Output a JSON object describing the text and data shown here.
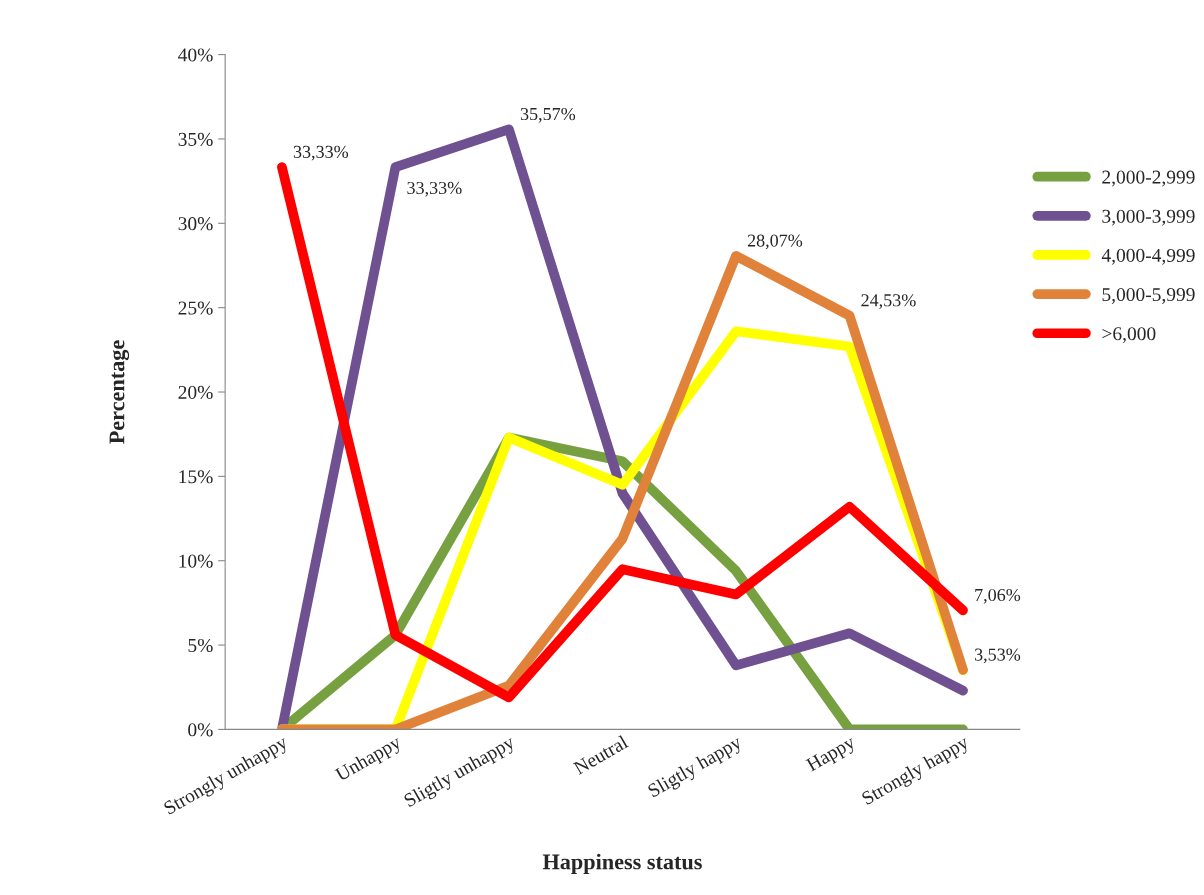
{
  "chart_data": {
    "type": "line",
    "xlabel": "Happiness status",
    "ylabel": "Percentage",
    "categories": [
      "Strongly unhappy",
      "Unhappy",
      "Sligtly unhappy",
      "Neutral",
      "Sligtly happy",
      "Happy",
      "Strongly happy"
    ],
    "series": [
      {
        "name": "2,000-2,999",
        "color": "#77a040",
        "values": [
          0,
          5.6,
          17.3,
          15.9,
          9.4,
          0,
          0
        ]
      },
      {
        "name": "3,000-3,999",
        "color": "#6f5090",
        "values": [
          0,
          33.33,
          35.57,
          14.0,
          3.8,
          5.7,
          2.3
        ],
        "value_labels": [
          null,
          "33,33%",
          "35,57%",
          null,
          null,
          null,
          null
        ]
      },
      {
        "name": "4,000-4,999",
        "color": "#ffff00",
        "values": [
          0,
          0,
          17.3,
          14.5,
          23.6,
          22.7,
          3.5
        ]
      },
      {
        "name": "5,000-5,999",
        "color": "#e0823a",
        "values": [
          0,
          0,
          2.6,
          11.3,
          28.07,
          24.53,
          3.53
        ],
        "value_labels": [
          null,
          null,
          null,
          null,
          "28,07%",
          "24,53%",
          "3,53%"
        ]
      },
      {
        "name": ">6,000",
        "color": "#ff0000",
        "values": [
          33.33,
          5.6,
          1.9,
          9.5,
          8.0,
          13.2,
          7.06
        ],
        "value_labels": [
          "33,33%",
          null,
          null,
          null,
          null,
          null,
          "7,06%"
        ]
      }
    ],
    "ylim": [
      0,
      40
    ],
    "yticks": [
      {
        "value": 0,
        "label": "0%"
      },
      {
        "value": 5,
        "label": "5%"
      },
      {
        "value": 10,
        "label": "10%"
      },
      {
        "value": 15,
        "label": "15%"
      },
      {
        "value": 20,
        "label": "20%"
      },
      {
        "value": 25,
        "label": "25%"
      },
      {
        "value": 30,
        "label": "30%"
      },
      {
        "value": 35,
        "label": "35%"
      },
      {
        "value": 40,
        "label": "40%"
      }
    ],
    "grid": false,
    "legend": "right",
    "marker": "none",
    "line_style": "solid"
  }
}
